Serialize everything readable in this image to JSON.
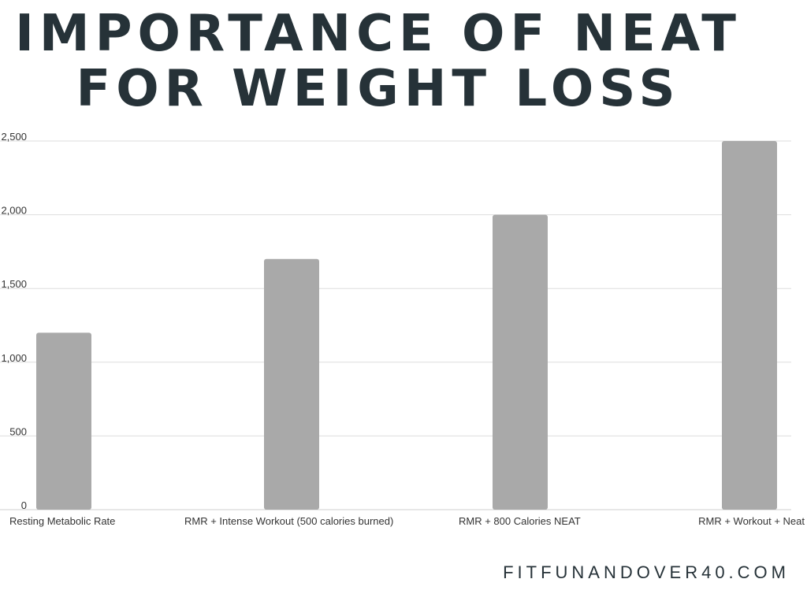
{
  "title": {
    "line1": "IMPORTANCE OF NEAT",
    "line2": "FOR WEIGHT LOSS"
  },
  "footer": "FITFUNANDOVER40.COM",
  "colors": {
    "bar": "#a9a9a9",
    "grid": "#dddddd",
    "axis_text": "#333333",
    "title": "#263238"
  },
  "chart_data": {
    "type": "bar",
    "categories": [
      "Resting Metabolic Rate",
      "RMR + Intense Workout (500 calories burned)",
      "RMR + 800 Calories NEAT",
      "RMR + Workout + Neat"
    ],
    "values": [
      1200,
      1700,
      2000,
      2500
    ],
    "ylim": [
      0,
      2500
    ],
    "yticks": [
      0,
      500,
      1000,
      1500,
      2000,
      2500
    ],
    "ytick_labels": [
      "0",
      "500",
      "1,000",
      "1,500",
      "2,000",
      "2,500"
    ],
    "grid": true,
    "legend": false
  }
}
